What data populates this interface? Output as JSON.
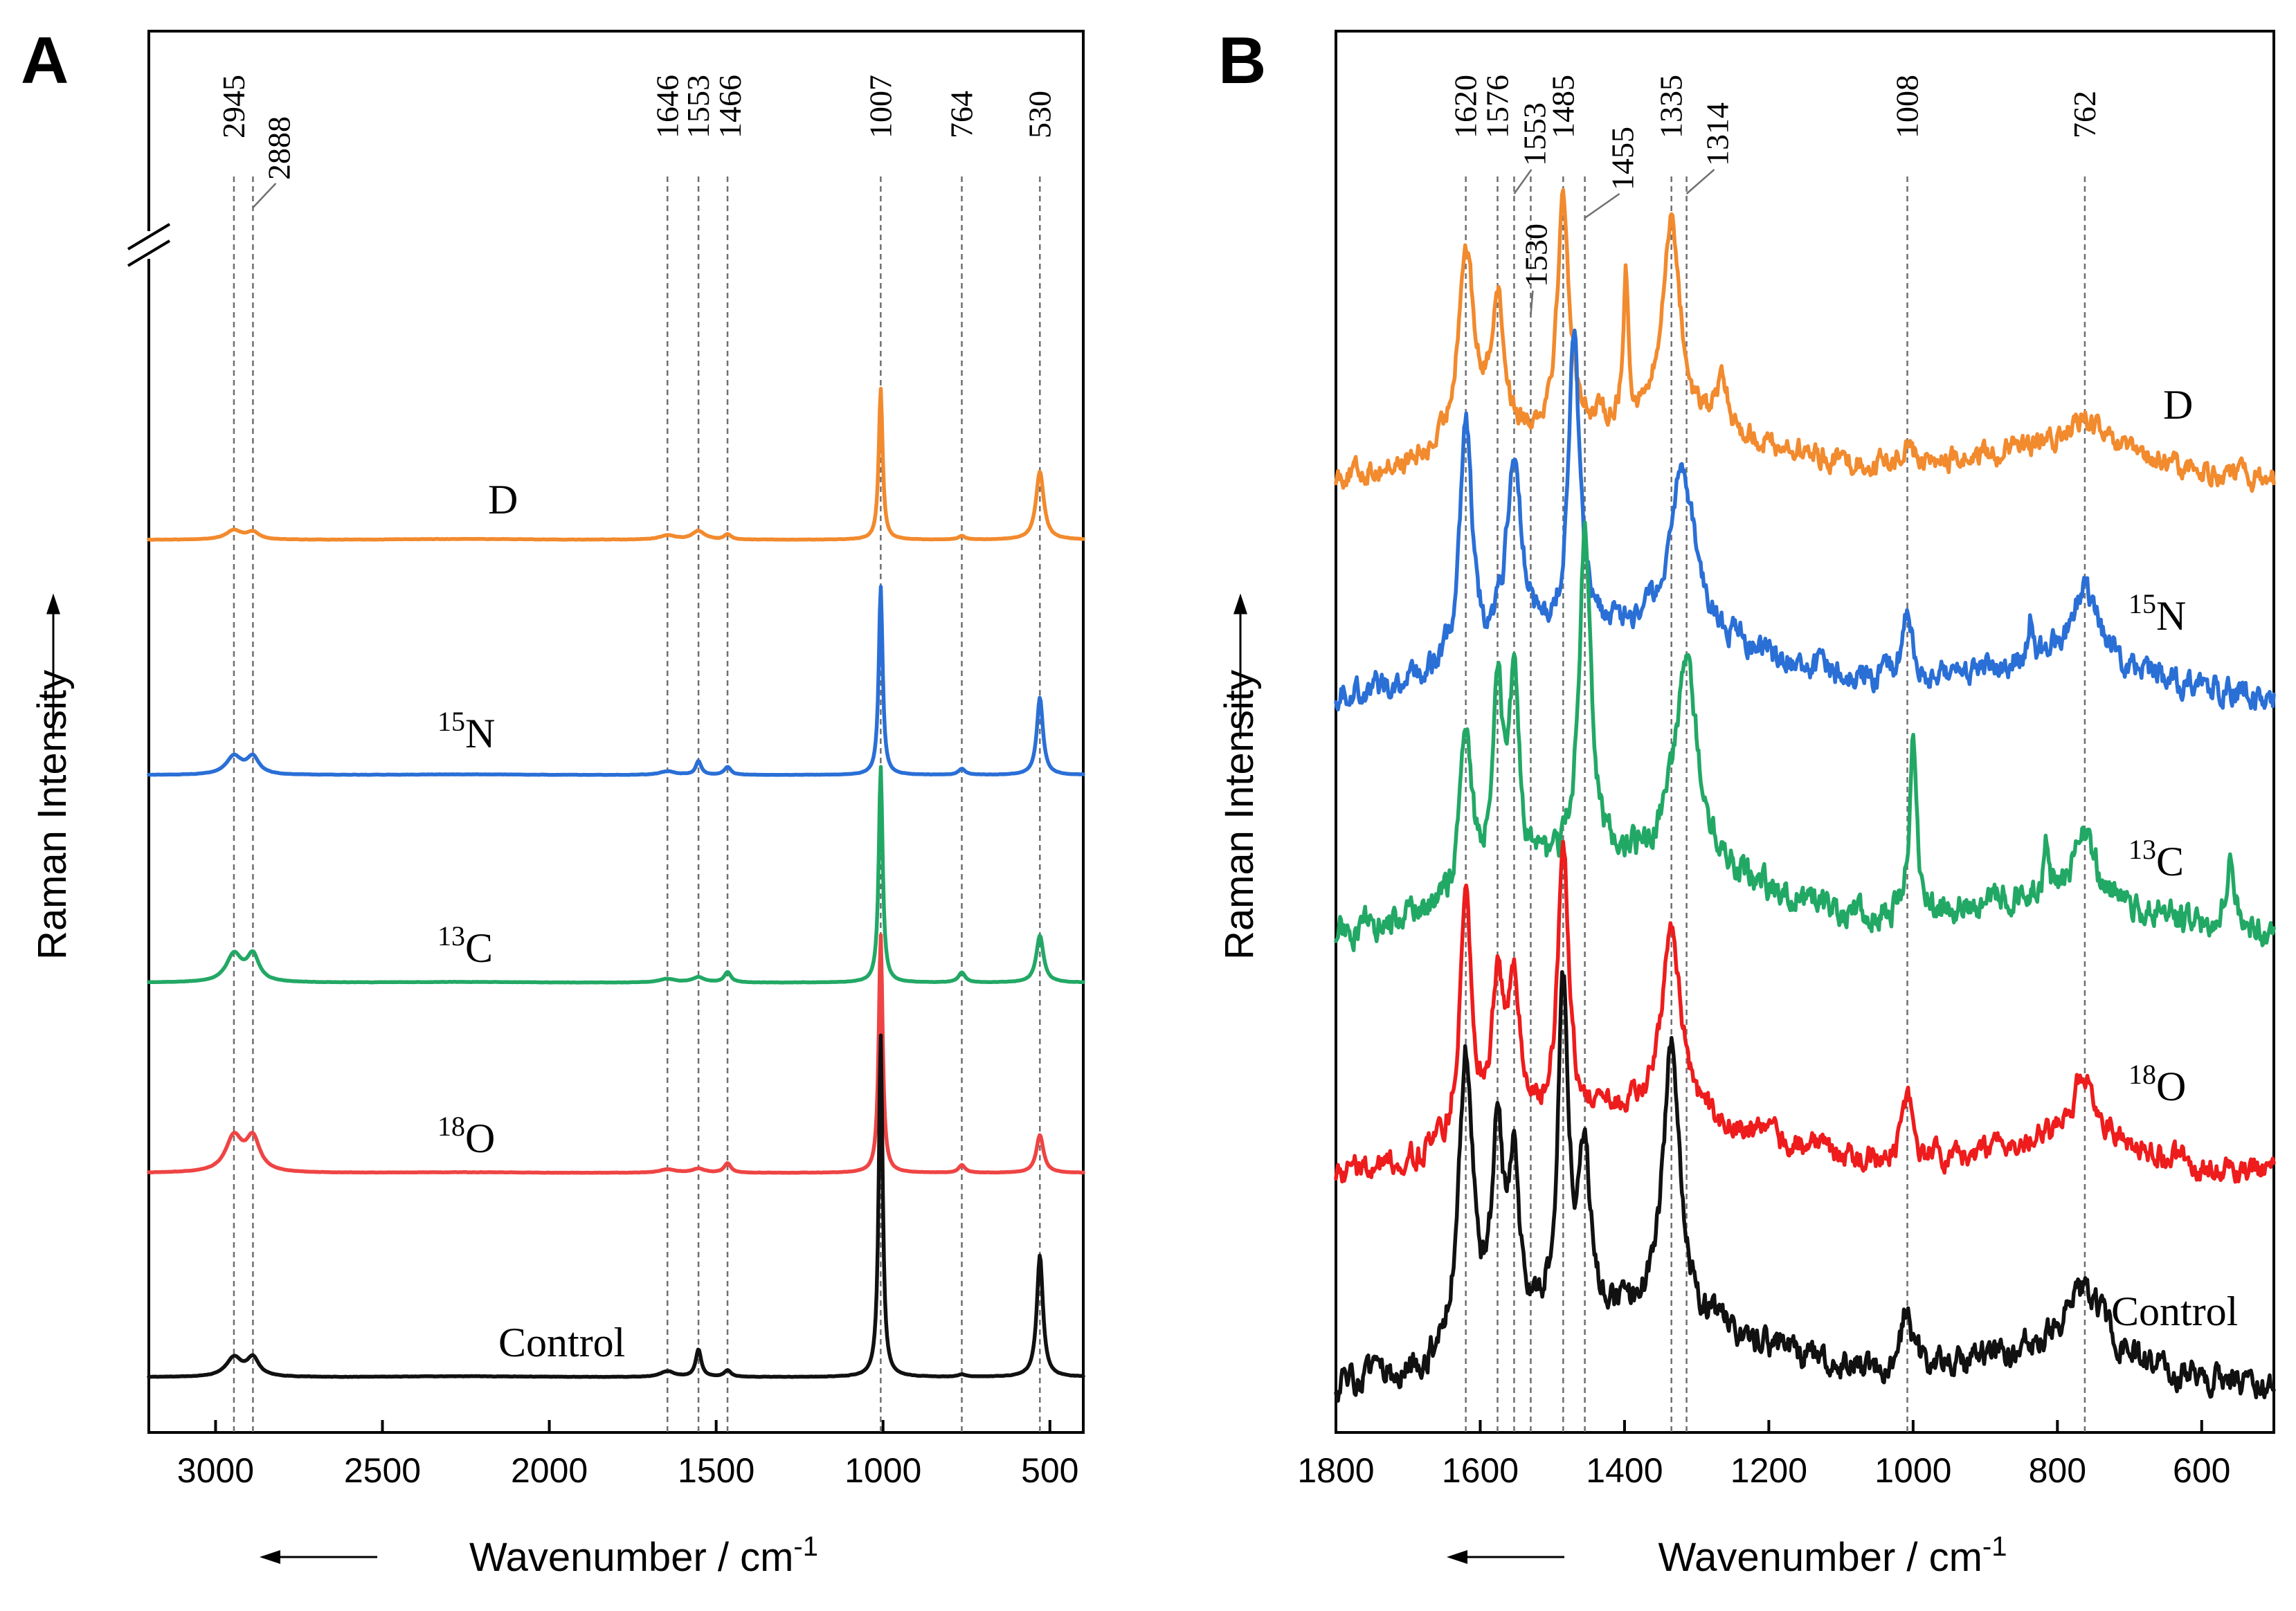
{
  "chart_data": [
    {
      "type": "line",
      "panel": "A",
      "xlabel": "Wavenumber / cm",
      "xlabel_sup": "-1",
      "ylabel": "Raman Intensity",
      "xlim": [
        3200,
        400
      ],
      "x_reversed": true,
      "x_ticks": [
        3000,
        2500,
        2000,
        1500,
        1000,
        500
      ],
      "y_axis_break": true,
      "peak_lines": [
        2945,
        2888,
        1646,
        1553,
        1466,
        1007,
        764,
        530
      ],
      "peak_labels": [
        "2945",
        "2888",
        "1646",
        "1553",
        "1466",
        "1007",
        "764",
        "530"
      ],
      "series": [
        {
          "name": "D",
          "iso_sup": "",
          "iso_base": "D",
          "color": "#f28a2e",
          "baseline": 0.0,
          "peaks": [
            [
              2945,
              0.26,
              28
            ],
            [
              2888,
              0.2,
              22
            ],
            [
              1646,
              0.12,
              28
            ],
            [
              1553,
              0.24,
              22
            ],
            [
              1466,
              0.14,
              12
            ],
            [
              1007,
              4.2,
              7
            ],
            [
              764,
              0.1,
              12
            ],
            [
              530,
              1.9,
              14
            ]
          ]
        },
        {
          "name": "15N",
          "iso_sup": "15",
          "iso_base": "N",
          "color": "#2a6fd6",
          "baseline": 0.0,
          "peaks": [
            [
              2945,
              0.6,
              28
            ],
            [
              2888,
              0.56,
              22
            ],
            [
              1646,
              0.12,
              28
            ],
            [
              1553,
              0.45,
              10
            ],
            [
              1466,
              0.26,
              12
            ],
            [
              1007,
              6.2,
              7
            ],
            [
              764,
              0.2,
              12
            ],
            [
              530,
              2.55,
              11
            ]
          ]
        },
        {
          "name": "13C",
          "iso_sup": "13",
          "iso_base": "C",
          "color": "#22a865",
          "baseline": 0.0,
          "peaks": [
            [
              2945,
              0.9,
              28
            ],
            [
              2888,
              0.86,
              22
            ],
            [
              1646,
              0.12,
              28
            ],
            [
              1553,
              0.17,
              22
            ],
            [
              1466,
              0.34,
              12
            ],
            [
              1007,
              7.1,
              7
            ],
            [
              764,
              0.33,
              12
            ],
            [
              530,
              1.55,
              13
            ]
          ]
        },
        {
          "name": "18O",
          "iso_sup": "18",
          "iso_base": "O",
          "color": "#ef4444",
          "baseline": 0.0,
          "peaks": [
            [
              2945,
              1.2,
              30
            ],
            [
              2888,
              1.12,
              25
            ],
            [
              1646,
              0.12,
              28
            ],
            [
              1553,
              0.14,
              22
            ],
            [
              1466,
              0.33,
              12
            ],
            [
              1007,
              8.2,
              7
            ],
            [
              764,
              0.26,
              12
            ],
            [
              530,
              1.3,
              13
            ]
          ]
        },
        {
          "name": "Control",
          "iso_sup": "",
          "iso_base": "Control",
          "color": "#111111",
          "baseline": 0.0,
          "peaks": [
            [
              2945,
              0.5,
              28
            ],
            [
              2888,
              0.48,
              22
            ],
            [
              1646,
              0.15,
              25
            ],
            [
              1553,
              0.72,
              10
            ],
            [
              1466,
              0.17,
              12
            ],
            [
              1007,
              9.0,
              7
            ],
            [
              764,
              0.06,
              12
            ],
            [
              530,
              3.2,
              11
            ]
          ]
        }
      ]
    },
    {
      "type": "line",
      "panel": "B",
      "xlabel": "Wavenumber / cm",
      "xlabel_sup": "-1",
      "ylabel": "Raman Intensity",
      "xlim": [
        1800,
        500
      ],
      "x_reversed": true,
      "x_ticks": [
        1800,
        1600,
        1400,
        1200,
        1000,
        800,
        600
      ],
      "peak_lines": [
        1620,
        1576,
        1553,
        1530,
        1485,
        1455,
        1335,
        1314,
        1008,
        762
      ],
      "peak_labels": [
        "1620",
        "1576",
        "1553",
        "1530",
        "1485",
        "1455",
        "1335",
        "1314",
        "1008",
        "762"
      ],
      "series": [
        {
          "name": "D",
          "iso_sup": "",
          "iso_base": "D",
          "color": "#f28a2e",
          "peaks": [
            [
              1620,
              0.78,
              14
            ],
            [
              1576,
              0.55,
              11
            ],
            [
              1485,
              0.9,
              10
            ],
            [
              1398,
              0.55,
              4
            ],
            [
              1335,
              0.82,
              14
            ],
            [
              1265,
              0.18,
              10
            ],
            [
              1008,
              0.1,
              8
            ],
            [
              762,
              0.12,
              30
            ]
          ]
        },
        {
          "name": "15N",
          "iso_sup": "15",
          "iso_base": "N",
          "color": "#2a6fd6",
          "peaks": [
            [
              1620,
              0.85,
              10
            ],
            [
              1553,
              0.65,
              13
            ],
            [
              1470,
              1.0,
              9
            ],
            [
              1320,
              0.55,
              22
            ],
            [
              1008,
              0.24,
              8
            ],
            [
              838,
              0.14,
              4
            ],
            [
              762,
              0.26,
              22
            ]
          ]
        },
        {
          "name": "13C",
          "iso_sup": "13",
          "iso_base": "C",
          "color": "#22a865",
          "peaks": [
            [
              1620,
              0.5,
              10
            ],
            [
              1576,
              0.6,
              9
            ],
            [
              1553,
              0.55,
              9
            ],
            [
              1455,
              1.0,
              10
            ],
            [
              1314,
              0.6,
              20
            ],
            [
              1000,
              0.55,
              6
            ],
            [
              815,
              0.15,
              4
            ],
            [
              762,
              0.2,
              18
            ],
            [
              560,
              0.22,
              8
            ]
          ]
        },
        {
          "name": "18O",
          "iso_sup": "18",
          "iso_base": "O",
          "color": "#ee1c1c",
          "peaks": [
            [
              1620,
              0.9,
              10
            ],
            [
              1576,
              0.5,
              10
            ],
            [
              1553,
              0.5,
              10
            ],
            [
              1485,
              1.0,
              9
            ],
            [
              1335,
              0.72,
              15
            ],
            [
              1008,
              0.22,
              8
            ],
            [
              762,
              0.25,
              22
            ]
          ]
        },
        {
          "name": "Control",
          "iso_sup": "",
          "iso_base": "Control",
          "color": "#111111",
          "peaks": [
            [
              1620,
              0.9,
              12
            ],
            [
              1576,
              0.62,
              9
            ],
            [
              1553,
              0.5,
              9
            ],
            [
              1485,
              1.0,
              9
            ],
            [
              1455,
              0.5,
              9
            ],
            [
              1335,
              0.85,
              14
            ],
            [
              1008,
              0.2,
              8
            ],
            [
              762,
              0.2,
              30
            ]
          ]
        }
      ]
    }
  ],
  "colors": {
    "D": "#f28a2e",
    "15N": "#2a6fd6",
    "13C": "#22a865",
    "18O": "#ef4444",
    "Control": "#111111"
  }
}
